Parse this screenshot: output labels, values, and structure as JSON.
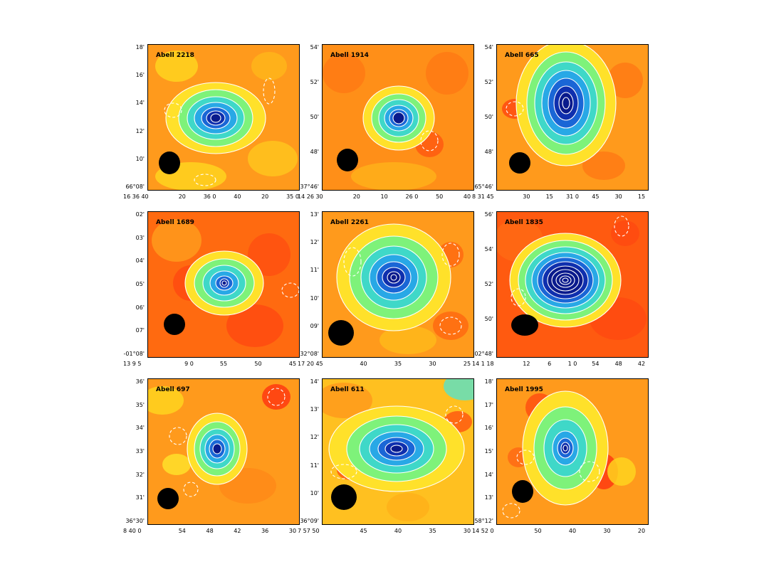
{
  "panels": [
    {
      "title": "Abell 2218",
      "yticks": [
        "18'",
        "16'",
        "14'",
        "12'",
        "10'",
        "66°08'"
      ],
      "xticks": [
        "16 36 40",
        "20",
        "36 0",
        "40",
        "20",
        "35 0"
      ],
      "colors": {
        "bg": "#ff9a1c",
        "core": "#0a1a8c"
      }
    },
    {
      "title": "Abell 1914",
      "yticks": [
        "54'",
        "52'",
        "50'",
        "48'",
        "37°46'"
      ],
      "xticks": [
        "14 26 30",
        "20",
        "10",
        "26 0",
        "50",
        "40"
      ],
      "colors": {
        "bg": "#ff8f18",
        "core": "#0a1a8c"
      }
    },
    {
      "title": "Abell 665",
      "yticks": [
        "54'",
        "52'",
        "50'",
        "48'",
        "65°46'"
      ],
      "xticks": [
        "8 31 45",
        "30",
        "15",
        "31 0",
        "45",
        "30",
        "15"
      ],
      "colors": {
        "bg": "#ff9a1c",
        "core": "#0a1a8c"
      }
    },
    {
      "title": "Abell 1689",
      "yticks": [
        "02'",
        "03'",
        "04'",
        "05'",
        "06'",
        "07'",
        "-01°08'"
      ],
      "xticks": [
        "13 9 5",
        "9 0",
        "55",
        "50",
        "45"
      ],
      "colors": {
        "bg": "#ff6a10",
        "core": "#0a1a8c"
      }
    },
    {
      "title": "Abell 2261",
      "yticks": [
        "13'",
        "12'",
        "11'",
        "10'",
        "09'",
        "32°08'"
      ],
      "xticks": [
        "17 20 45",
        "40",
        "35",
        "30",
        "25"
      ],
      "colors": {
        "bg": "#ff9a1c",
        "core": "#0a1a8c"
      }
    },
    {
      "title": "Abell 1835",
      "yticks": [
        "56'",
        "54'",
        "52'",
        "50'",
        "02°48'"
      ],
      "xticks": [
        "14 1 18",
        "12",
        "6",
        "1 0",
        "54",
        "48",
        "42"
      ],
      "colors": {
        "bg": "#ff5a10",
        "core": "#0a1a8c"
      }
    },
    {
      "title": "Abell 697",
      "yticks": [
        "36'",
        "35'",
        "34'",
        "33'",
        "32'",
        "31'",
        "36°30'"
      ],
      "xticks": [
        "8 40 0",
        "54",
        "48",
        "42",
        "36",
        "30"
      ],
      "colors": {
        "bg": "#ff9a1c",
        "core": "#0a1a8c"
      }
    },
    {
      "title": "Abell 611",
      "yticks": [
        "14'",
        "13'",
        "12'",
        "11'",
        "10'",
        "36°09'"
      ],
      "xticks": [
        "7 57 50",
        "45",
        "40",
        "35",
        "30"
      ],
      "colors": {
        "bg": "#ffc020",
        "core": "#0a1a8c"
      }
    },
    {
      "title": "Abell 1995",
      "yticks": [
        "18'",
        "17'",
        "16'",
        "15'",
        "14'",
        "13'",
        "58°12'"
      ],
      "xticks": [
        "14 52 0",
        "50",
        "40",
        "30",
        "20"
      ],
      "colors": {
        "bg": "#ff9a1c",
        "core": "#0a1a8c"
      }
    }
  ]
}
